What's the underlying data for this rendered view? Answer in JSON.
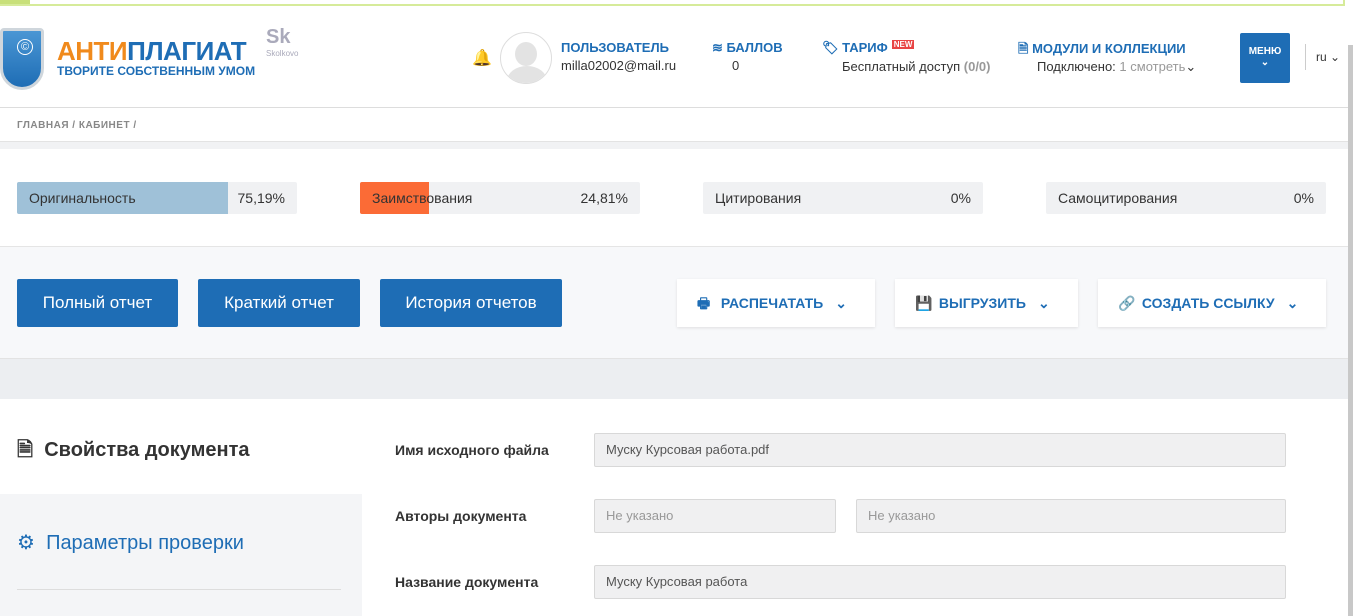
{
  "header": {
    "logo_part1": "АНТИ",
    "logo_part2": "ПЛАГИАТ",
    "slogan": "ТВОРИТЕ СОБСТВЕННЫМ УМОМ",
    "skolkovo": "Sk",
    "skolkovo_sub": "Skolkovo",
    "user_title": "ПОЛЬЗОВАТЕЛЬ",
    "user_email": "milla02002@mail.ru",
    "points_title": "БАЛЛОВ",
    "points_value": "0",
    "tariff_title": "ТАРИФ",
    "tariff_badge": "NEW",
    "tariff_value": "Бесплатный доступ",
    "tariff_count": "(0/0)",
    "modules_title": "МОДУЛИ И КОЛЛЕКЦИИ",
    "modules_label": "Подключено:",
    "modules_count": "1",
    "modules_link": "смотреть",
    "menu_label": "МЕНЮ",
    "lang": "ru"
  },
  "breadcrumbs": [
    "ГЛАВНАЯ",
    "КАБИНЕТ"
  ],
  "stats": [
    {
      "label": "Оригинальность",
      "value": "75,19%",
      "percent": 75.19,
      "color": "#9fc1d8"
    },
    {
      "label": "Заимствования",
      "value": "24,81%",
      "percent": 24.81,
      "color": "#fb6b36"
    },
    {
      "label": "Цитирования",
      "value": "0%",
      "percent": 0,
      "color": "#cccccc"
    },
    {
      "label": "Самоцитирования",
      "value": "0%",
      "percent": 0,
      "color": "#cccccc"
    }
  ],
  "buttons": {
    "full": "Полный отчет",
    "short": "Краткий отчет",
    "history": "История отчетов",
    "print": "РАСПЕЧАТАТЬ",
    "export": "ВЫГРУЗИТЬ",
    "link": "СОЗДАТЬ ССЫЛКУ"
  },
  "sidebar": {
    "properties": "Свойства документа",
    "params": "Параметры проверки"
  },
  "form": {
    "file_label": "Имя исходного файла",
    "file_value": "Муску Курсовая работа.pdf",
    "authors_label": "Авторы документа",
    "author1": "Не указано",
    "author2": "Не указано",
    "title_label": "Название документа",
    "title_value": "Муску Курсовая работа"
  },
  "colors": {
    "brand": "#1e6db5",
    "accent": "#f08a1c"
  }
}
